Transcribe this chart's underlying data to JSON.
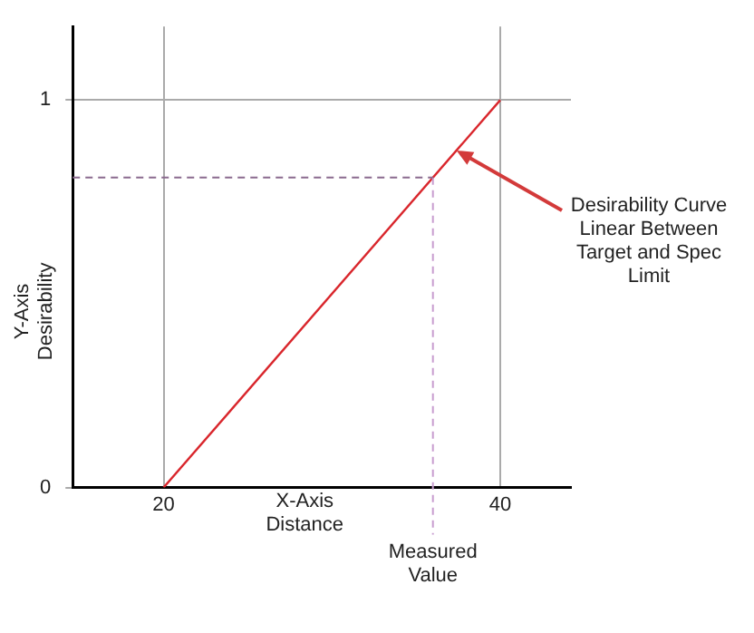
{
  "chart_data": {
    "type": "line",
    "xlabel": "X-Axis Distance",
    "ylabel": "Y-Axis Desirability",
    "series": [
      {
        "color": "#d9262c",
        "x": [
          20,
          40
        ],
        "values": [
          0,
          1
        ]
      }
    ],
    "xlim": [
      14.6,
      44.2
    ],
    "xticks": [
      20,
      40
    ],
    "ylim": [
      0,
      1.19
    ],
    "yticks": [
      0,
      1
    ],
    "grid": true,
    "legend": false,
    "marker": "none",
    "line_style": "solid",
    "ref_lines": [
      {
        "axis": "x",
        "value": 36,
        "label": "Measured Value",
        "color": "#c89ccf",
        "line_style": "dashed"
      },
      {
        "axis": "y",
        "value": 0.8,
        "label": null,
        "color": "#8a6a8e",
        "line_style": "dashed"
      }
    ],
    "annotations": [
      {
        "text": "Desirability Curve Linear Between Target and Spec Limit",
        "x": 37.4,
        "y": 0.87
      }
    ]
  }
}
